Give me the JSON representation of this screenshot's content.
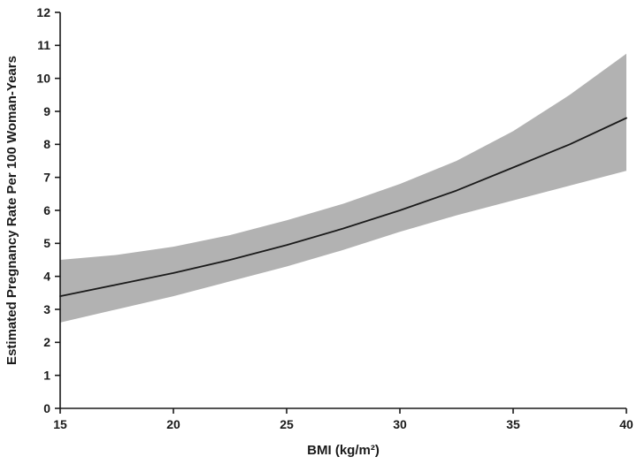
{
  "chart_data": {
    "type": "line",
    "title": "",
    "xlabel": "BMI (kg/m²)",
    "ylabel": "Estimated Pregnancy Rate Per 100 Woman-Years",
    "xlim": [
      15,
      40
    ],
    "ylim": [
      0,
      12
    ],
    "x_ticks": [
      15,
      20,
      25,
      30,
      35,
      40
    ],
    "y_ticks": [
      0,
      1,
      2,
      3,
      4,
      5,
      6,
      7,
      8,
      9,
      10,
      11,
      12
    ],
    "grid": false,
    "legend": false,
    "x": [
      15,
      17.5,
      20,
      22.5,
      25,
      27.5,
      30,
      32.5,
      35,
      37.5,
      40
    ],
    "series": [
      {
        "name": "estimated_pregnancy_rate",
        "values": [
          3.4,
          3.75,
          4.1,
          4.5,
          4.95,
          5.45,
          6.0,
          6.6,
          7.3,
          8.0,
          8.8
        ]
      },
      {
        "name": "lower_confidence_band",
        "values": [
          2.6,
          3.0,
          3.4,
          3.85,
          4.3,
          4.8,
          5.35,
          5.85,
          6.3,
          6.75,
          7.2
        ]
      },
      {
        "name": "upper_confidence_band",
        "values": [
          4.5,
          4.65,
          4.9,
          5.25,
          5.7,
          6.2,
          6.8,
          7.5,
          8.4,
          9.5,
          10.75
        ]
      }
    ],
    "colors": {
      "line": "#1a1a1a",
      "band": "#b2b2b2",
      "axis": "#1a1a1a",
      "background": "#ffffff"
    }
  }
}
